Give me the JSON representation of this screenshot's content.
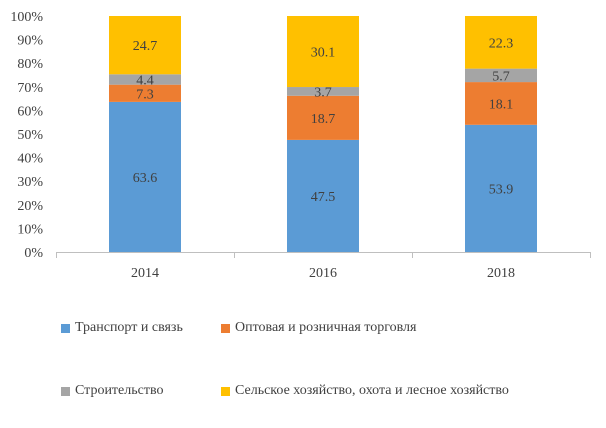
{
  "chart_data": {
    "type": "bar",
    "stacked": true,
    "percent_stacked": true,
    "categories": [
      "2014",
      "2016",
      "2018"
    ],
    "series": [
      {
        "name": "Транспорт и связь",
        "color": "#5B9BD5",
        "values": [
          63.6,
          47.5,
          53.9
        ]
      },
      {
        "name": "Оптовая и розничная торговля",
        "color": "#ED7D31",
        "values": [
          7.3,
          18.7,
          18.1
        ]
      },
      {
        "name": "Строительство",
        "color": "#A5A5A5",
        "values": [
          4.4,
          3.7,
          5.7
        ]
      },
      {
        "name": "Сельское хозяйство, охота и лесное хозяйство",
        "color": "#FFC000",
        "values": [
          24.7,
          30.1,
          22.3
        ]
      }
    ],
    "y_ticks": [
      "0%",
      "10%",
      "20%",
      "30%",
      "40%",
      "50%",
      "60%",
      "70%",
      "80%",
      "90%",
      "100%"
    ],
    "ylim": [
      0,
      100
    ],
    "grid": false,
    "legend_position": "bottom"
  }
}
